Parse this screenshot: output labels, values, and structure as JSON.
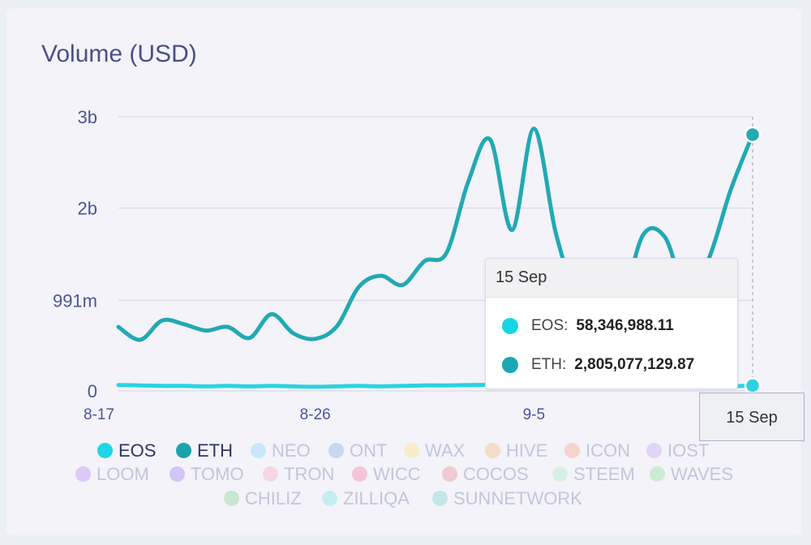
{
  "title": "Volume (USD)",
  "colors": {
    "EOS": "#2bd3e1",
    "ETH": "#22a9b3",
    "axis_text": "#4d5596",
    "title": "#4a4f88"
  },
  "tooltip": {
    "date": "15 Sep",
    "rows": [
      {
        "label": "EOS:",
        "value": "58,346,988.11",
        "color": "#16d6e3"
      },
      {
        "label": "ETH:",
        "value": "2,805,077,129.87",
        "color": "#1aa7b1"
      }
    ]
  },
  "crosshair_label": "15 Sep",
  "legend": [
    {
      "name": "EOS",
      "color": "#1ed6e6",
      "active": true
    },
    {
      "name": "ETH",
      "color": "#1aa3ad",
      "active": true
    },
    {
      "name": "NEO",
      "color": "#c9e6fb",
      "active": false
    },
    {
      "name": "ONT",
      "color": "#c8d8f0",
      "active": false
    },
    {
      "name": "WAX",
      "color": "#f8ecc8",
      "active": false
    },
    {
      "name": "HIVE",
      "color": "#f6dcc6",
      "active": false
    },
    {
      "name": "ICON",
      "color": "#f6d3cc",
      "active": false
    },
    {
      "name": "IOST",
      "color": "#e1d5f7",
      "active": false
    },
    {
      "name": "LOOM",
      "color": "#dcc9f6",
      "active": false
    },
    {
      "name": "TOMO",
      "color": "#d2c6f4",
      "active": false
    },
    {
      "name": "TRON",
      "color": "#f6d6e2",
      "active": false
    },
    {
      "name": "WICC",
      "color": "#f5c4d7",
      "active": false
    },
    {
      "name": "COCOS",
      "color": "#efcbd3",
      "active": false
    },
    {
      "name": "STEEM",
      "color": "#d7f0e6",
      "active": false
    },
    {
      "name": "WAVES",
      "color": "#cdebd4",
      "active": false
    },
    {
      "name": "CHILIZ",
      "color": "#c8e6d2",
      "active": false
    },
    {
      "name": "ZILLIQA",
      "color": "#c6edf3",
      "active": false
    },
    {
      "name": "SUNNETWORK",
      "color": "#c4e5ea",
      "active": false
    }
  ],
  "chart_data": {
    "type": "line",
    "title": "Volume (USD)",
    "xlabel": "",
    "ylabel": "",
    "ylim": [
      0,
      3000000000
    ],
    "y_ticks": [
      {
        "label": "0",
        "value": 0
      },
      {
        "label": "991m",
        "value": 991000000
      },
      {
        "label": "2b",
        "value": 2000000000
      },
      {
        "label": "3b",
        "value": 3000000000
      }
    ],
    "x_ticks": [
      {
        "label": "8-17",
        "index": 0
      },
      {
        "label": "8-26",
        "index": 9
      },
      {
        "label": "9-5",
        "index": 19
      }
    ],
    "grid": true,
    "legend_position": "bottom",
    "x": [
      "Aug 17",
      "Aug 18",
      "Aug 19",
      "Aug 20",
      "Aug 21",
      "Aug 22",
      "Aug 23",
      "Aug 24",
      "Aug 25",
      "Aug 26",
      "Aug 27",
      "Aug 28",
      "Aug 29",
      "Aug 30",
      "Aug 31",
      "Sep 1",
      "Sep 2",
      "Sep 3",
      "Sep 4",
      "Sep 5",
      "Sep 6",
      "Sep 7",
      "Sep 8",
      "Sep 9",
      "Sep 10",
      "Sep 11",
      "Sep 12",
      "Sep 13",
      "Sep 14",
      "Sep 15"
    ],
    "series": [
      {
        "name": "EOS",
        "values": [
          65000000,
          60000000,
          55000000,
          55000000,
          50000000,
          55000000,
          50000000,
          55000000,
          50000000,
          45000000,
          50000000,
          55000000,
          50000000,
          55000000,
          60000000,
          60000000,
          65000000,
          65000000,
          60000000,
          58000000,
          55000000,
          50000000,
          50000000,
          50000000,
          50000000,
          45000000,
          45000000,
          45000000,
          50000000,
          58346988
        ]
      },
      {
        "name": "ETH",
        "values": [
          700000000,
          560000000,
          770000000,
          730000000,
          660000000,
          700000000,
          580000000,
          840000000,
          630000000,
          570000000,
          710000000,
          1140000000,
          1260000000,
          1160000000,
          1420000000,
          1510000000,
          2290000000,
          2750000000,
          1760000000,
          2870000000,
          1730000000,
          1020000000,
          910000000,
          970000000,
          1710000000,
          1680000000,
          1070000000,
          1450000000,
          2200000000,
          2805077130
        ]
      }
    ]
  }
}
